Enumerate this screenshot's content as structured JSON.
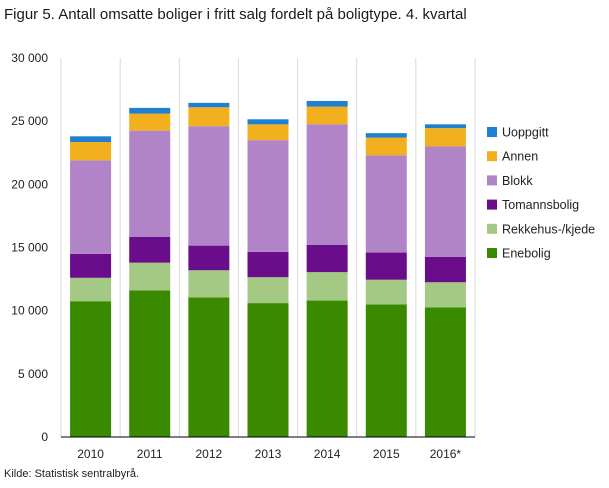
{
  "title": "Figur 5. Antall omsatte boliger i fritt salg fordelt på boligtype. 4. kvartal",
  "source": "Kilde: Statistisk sentralbyrå.",
  "chart_data": {
    "type": "bar",
    "stacked": true,
    "title": "Figur 5. Antall omsatte boliger i fritt salg fordelt på boligtype. 4. kvartal",
    "xlabel": "",
    "ylabel": "",
    "ylim": [
      0,
      30000
    ],
    "yticks": [
      0,
      5000,
      10000,
      15000,
      20000,
      25000,
      30000
    ],
    "ytick_labels": [
      "0",
      "5 000",
      "10 000",
      "15 000",
      "20 000",
      "25 000",
      "30 000"
    ],
    "grid": "vertical lines between categories",
    "legend_position": "right",
    "categories": [
      "2010",
      "2011",
      "2012",
      "2013",
      "2014",
      "2015",
      "2016*"
    ],
    "series": [
      {
        "name": "Enebolig",
        "color": "#3a8a00",
        "values": [
          10750,
          11600,
          11050,
          10600,
          10800,
          10500,
          10250
        ]
      },
      {
        "name": "Rekkehus-/kjede",
        "color": "#a3c985",
        "values": [
          1850,
          2200,
          2150,
          2050,
          2250,
          1950,
          2000
        ]
      },
      {
        "name": "Tomannsbolig",
        "color": "#6a0d8a",
        "values": [
          1900,
          2050,
          1950,
          2000,
          2150,
          2150,
          2000
        ]
      },
      {
        "name": "Blokk",
        "color": "#b084c6",
        "values": [
          7400,
          8400,
          9450,
          8850,
          9550,
          7700,
          8750
        ]
      },
      {
        "name": "Annen",
        "color": "#f2b01e",
        "values": [
          1450,
          1350,
          1500,
          1250,
          1400,
          1400,
          1450
        ]
      },
      {
        "name": "Uoppgitt",
        "color": "#1f7fd0",
        "values": [
          450,
          450,
          350,
          400,
          450,
          350,
          300
        ]
      }
    ]
  }
}
